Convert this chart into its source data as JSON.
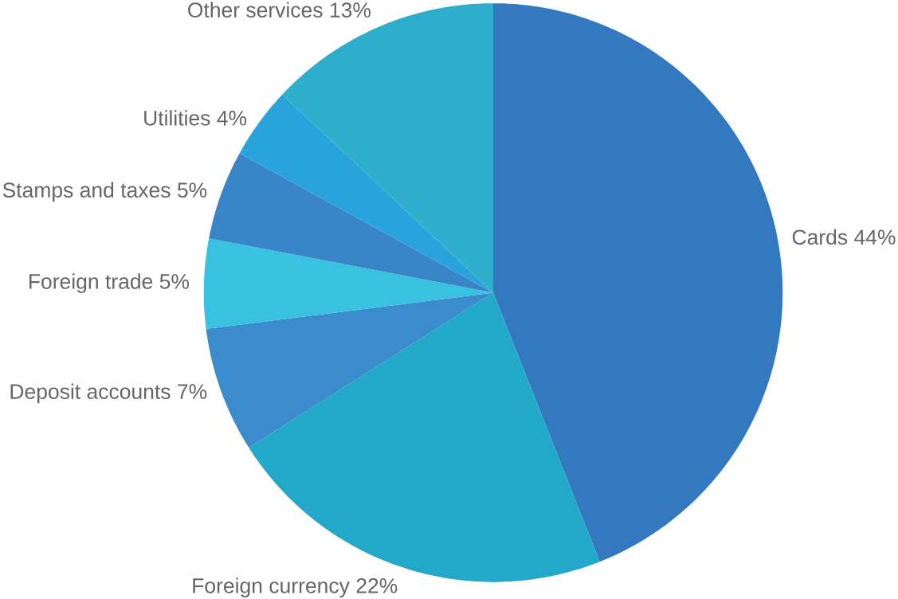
{
  "chart_data": {
    "type": "pie",
    "categories": [
      "Cards",
      "Foreign currency",
      "Deposit accounts",
      "Foreign trade",
      "Stamps and taxes",
      "Utilities",
      "Other services"
    ],
    "values": [
      44,
      22,
      7,
      5,
      5,
      4,
      13
    ],
    "value_labels": [
      "44%",
      "22%",
      "7%",
      "5%",
      "5%",
      "4%",
      "13%"
    ],
    "colors": [
      "#3478c0",
      "#22a8c8",
      "#3a8ccc",
      "#38c2e0",
      "#3886c8",
      "#29a3dc",
      "#2eaecb"
    ]
  }
}
